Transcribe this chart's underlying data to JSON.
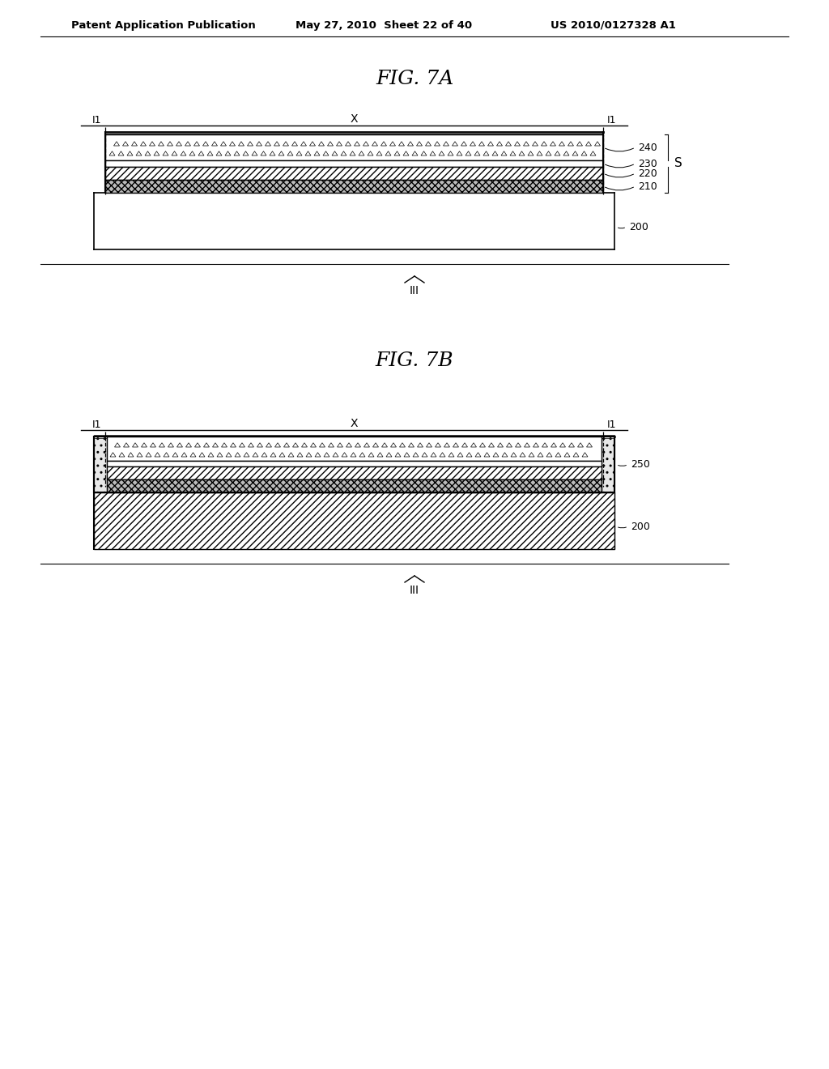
{
  "background_color": "#ffffff",
  "header_text": "Patent Application Publication",
  "header_date": "May 27, 2010  Sheet 22 of 40",
  "header_patent": "US 2010/0127328 A1",
  "fig7a_title": "FIG. 7A",
  "fig7b_title": "FIG. 7B"
}
